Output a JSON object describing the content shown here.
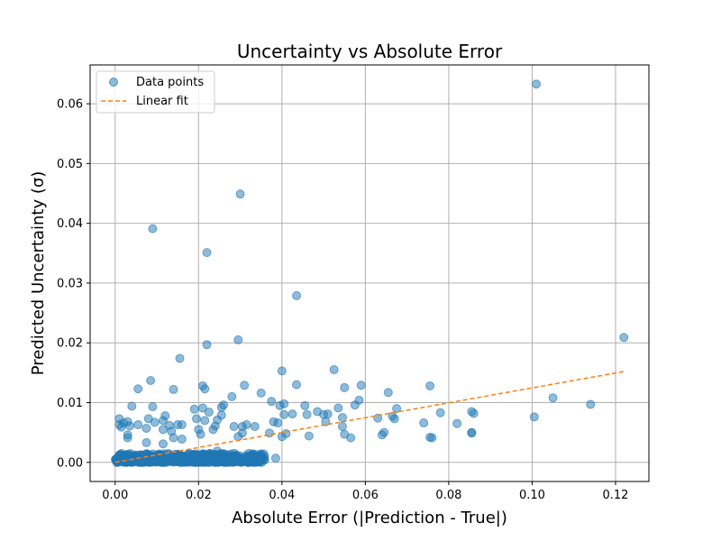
{
  "chart_data": {
    "type": "scatter",
    "title": "Uncertainty vs Absolute Error",
    "xlabel": "Absolute Error (|Prediction - True|)",
    "ylabel": "Predicted Uncertainty (σ)",
    "xlim": [
      -0.006,
      0.128
    ],
    "ylim": [
      -0.0032,
      0.0665
    ],
    "xticks": [
      0.0,
      0.02,
      0.04,
      0.06,
      0.08,
      0.1,
      0.12
    ],
    "xtick_labels": [
      "0.00",
      "0.02",
      "0.04",
      "0.06",
      "0.08",
      "0.10",
      "0.12"
    ],
    "yticks": [
      0.0,
      0.01,
      0.02,
      0.03,
      0.04,
      0.05,
      0.06
    ],
    "ytick_labels": [
      "0.00",
      "0.01",
      "0.02",
      "0.03",
      "0.04",
      "0.05",
      "0.06"
    ],
    "grid": true,
    "legend": {
      "placement": "top-left",
      "entries": [
        "Data points",
        "Linear fit"
      ]
    },
    "colors": {
      "points": "#1f77b4",
      "fit": "#ff7f0e",
      "grid": "#b0b0b0"
    },
    "series": [
      {
        "name": "Data points",
        "kind": "scatter",
        "points": [
          [
            0.101,
            0.0633
          ],
          [
            0.03,
            0.0449
          ],
          [
            0.009,
            0.0391
          ],
          [
            0.022,
            0.0351
          ],
          [
            0.0435,
            0.0279
          ],
          [
            0.122,
            0.0209
          ],
          [
            0.0295,
            0.0205
          ],
          [
            0.022,
            0.0197
          ],
          [
            0.0155,
            0.0174
          ],
          [
            0.04,
            0.0153
          ],
          [
            0.0525,
            0.0155
          ],
          [
            0.0085,
            0.0137
          ],
          [
            0.0055,
            0.0123
          ],
          [
            0.014,
            0.0122
          ],
          [
            0.021,
            0.0128
          ],
          [
            0.0215,
            0.0123
          ],
          [
            0.031,
            0.0129
          ],
          [
            0.0435,
            0.013
          ],
          [
            0.055,
            0.0125
          ],
          [
            0.059,
            0.0129
          ],
          [
            0.0755,
            0.0128
          ],
          [
            0.0655,
            0.0117
          ],
          [
            0.035,
            0.0116
          ],
          [
            0.028,
            0.011
          ],
          [
            0.0585,
            0.0104
          ],
          [
            0.105,
            0.0108
          ],
          [
            0.114,
            0.0097
          ],
          [
            0.0375,
            0.0102
          ],
          [
            0.0405,
            0.0098
          ],
          [
            0.0455,
            0.0095
          ],
          [
            0.0535,
            0.0091
          ],
          [
            0.0575,
            0.0096
          ],
          [
            0.0675,
            0.009
          ],
          [
            0.004,
            0.0094
          ],
          [
            0.009,
            0.0093
          ],
          [
            0.019,
            0.0089
          ],
          [
            0.021,
            0.0091
          ],
          [
            0.026,
            0.0096
          ],
          [
            0.0255,
            0.0092
          ],
          [
            0.0425,
            0.0081
          ],
          [
            0.046,
            0.008
          ],
          [
            0.0485,
            0.0085
          ],
          [
            0.05,
            0.008
          ],
          [
            0.051,
            0.0081
          ],
          [
            0.0545,
            0.0075
          ],
          [
            0.063,
            0.0074
          ],
          [
            0.0665,
            0.0077
          ],
          [
            0.067,
            0.0073
          ],
          [
            0.078,
            0.0083
          ],
          [
            0.0855,
            0.0085
          ],
          [
            0.086,
            0.0082
          ],
          [
            0.1005,
            0.0076
          ],
          [
            0.001,
            0.0073
          ],
          [
            0.002,
            0.0066
          ],
          [
            0.003,
            0.0068
          ],
          [
            0.0035,
            0.0061
          ],
          [
            0.008,
            0.0073
          ],
          [
            0.0095,
            0.0067
          ],
          [
            0.0115,
            0.007
          ],
          [
            0.012,
            0.0078
          ],
          [
            0.0195,
            0.0073
          ],
          [
            0.0225,
            0.0084
          ],
          [
            0.0245,
            0.0071
          ],
          [
            0.0255,
            0.0079
          ],
          [
            0.0305,
            0.006
          ],
          [
            0.0315,
            0.0063
          ],
          [
            0.0335,
            0.006
          ],
          [
            0.038,
            0.0068
          ],
          [
            0.039,
            0.0066
          ],
          [
            0.0395,
            0.0095
          ],
          [
            0.0405,
            0.008
          ],
          [
            0.0505,
            0.0068
          ],
          [
            0.0545,
            0.006
          ],
          [
            0.074,
            0.0066
          ],
          [
            0.082,
            0.0065
          ],
          [
            0.001,
            0.0063
          ],
          [
            0.0015,
            0.0059
          ],
          [
            0.0055,
            0.0063
          ],
          [
            0.013,
            0.0062
          ],
          [
            0.015,
            0.0063
          ],
          [
            0.016,
            0.0063
          ],
          [
            0.0215,
            0.007
          ],
          [
            0.0235,
            0.0055
          ],
          [
            0.024,
            0.0061
          ],
          [
            0.0285,
            0.006
          ],
          [
            0.0075,
            0.0057
          ],
          [
            0.0115,
            0.0055
          ],
          [
            0.0135,
            0.0052
          ],
          [
            0.02,
            0.0055
          ],
          [
            0.0205,
            0.0047
          ],
          [
            0.0305,
            0.0049
          ],
          [
            0.037,
            0.0049
          ],
          [
            0.04,
            0.0043
          ],
          [
            0.041,
            0.0048
          ],
          [
            0.0465,
            0.0044
          ],
          [
            0.055,
            0.0047
          ],
          [
            0.0565,
            0.0041
          ],
          [
            0.0645,
            0.005
          ],
          [
            0.064,
            0.0046
          ],
          [
            0.0755,
            0.0042
          ],
          [
            0.076,
            0.0041
          ],
          [
            0.0855,
            0.005
          ],
          [
            0.0855,
            0.0049
          ],
          [
            0.003,
            0.0041
          ],
          [
            0.003,
            0.0046
          ],
          [
            0.0075,
            0.0033
          ],
          [
            0.0115,
            0.0031
          ],
          [
            0.014,
            0.0041
          ],
          [
            0.016,
            0.0039
          ],
          [
            0.0245,
            0.0019
          ],
          [
            0.0295,
            0.0043
          ],
          [
            0.0385,
            0.0007
          ]
        ],
        "dense_cluster": {
          "x_range": [
            0.0,
            0.036
          ],
          "y_range": [
            0.0,
            0.0015
          ],
          "count": 600
        }
      },
      {
        "name": "Linear fit",
        "kind": "line",
        "style": "dashed",
        "x": [
          0.0,
          0.122
        ],
        "y": [
          0.0,
          0.0152
        ]
      }
    ]
  }
}
